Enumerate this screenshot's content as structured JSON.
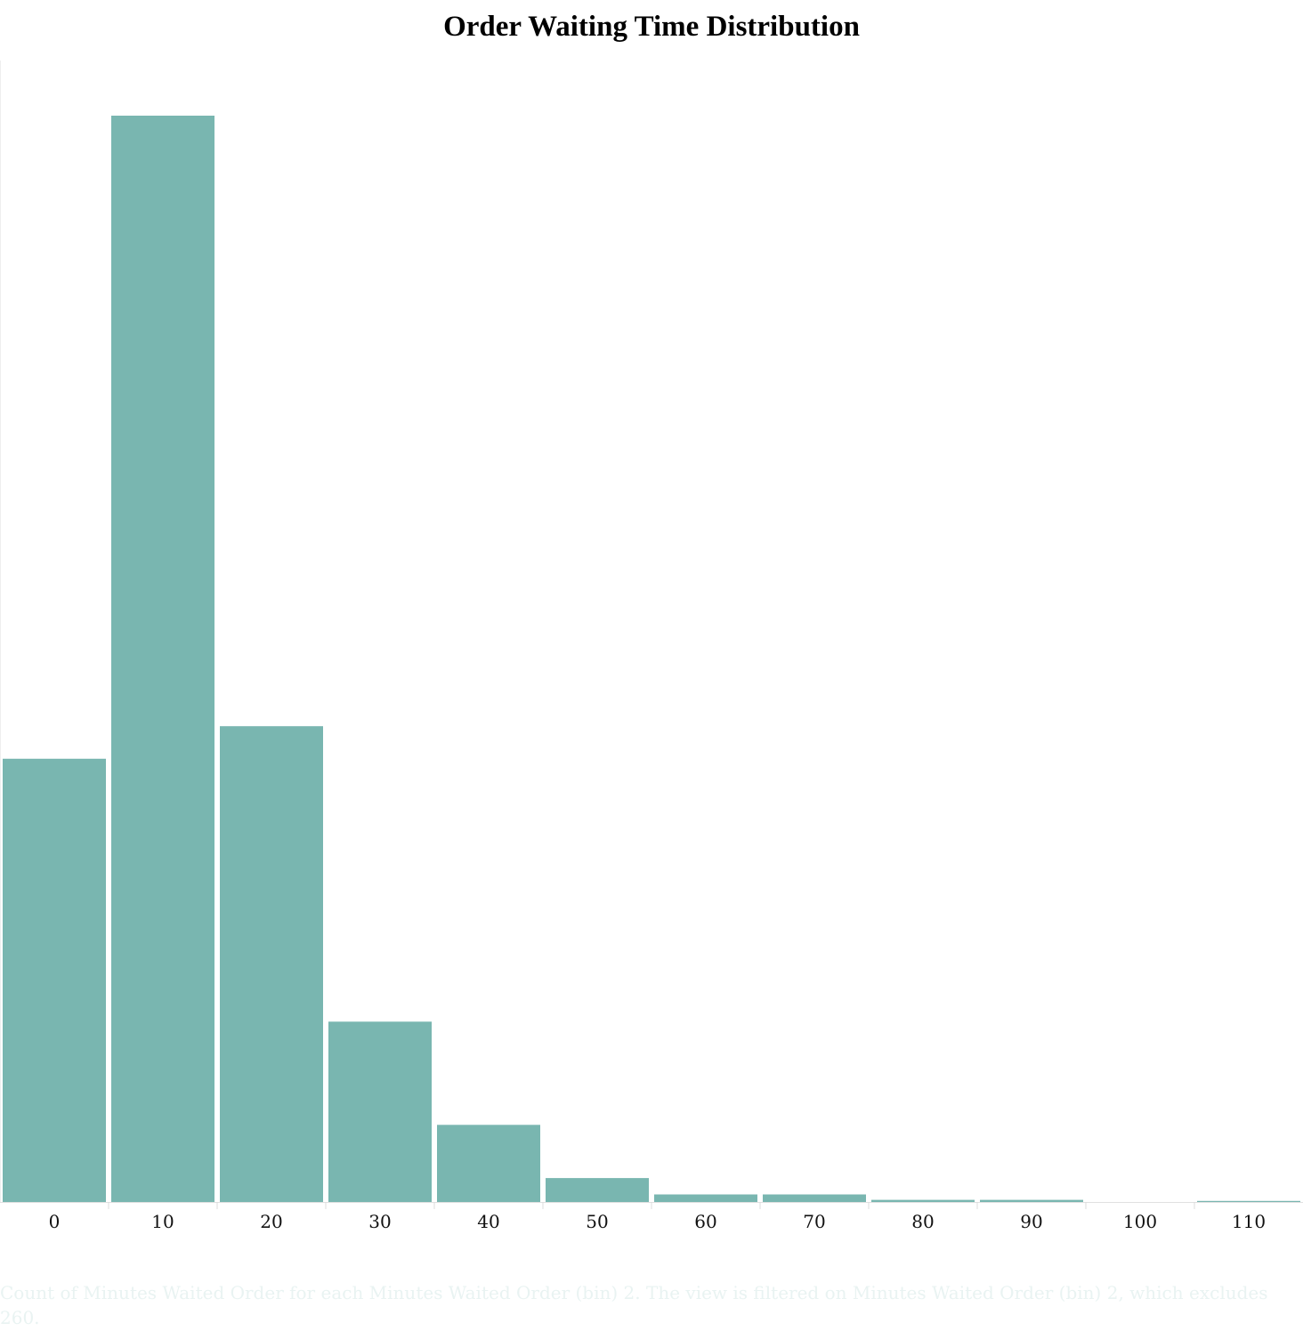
{
  "chart_data": {
    "type": "bar",
    "title": "Order Waiting Time Distribution",
    "xlabel": "",
    "ylabel": "",
    "categories": [
      "0",
      "10",
      "20",
      "30",
      "40",
      "50",
      "60",
      "70",
      "80",
      "90",
      "100",
      "110"
    ],
    "values": [
      408,
      1000,
      438,
      166,
      71,
      22,
      7,
      7,
      2,
      2,
      0,
      1
    ],
    "ylim": [
      0,
      1050
    ],
    "grid": false,
    "bar_color": "#79b6b0",
    "caption": "Count of Minutes Waited Order for each Minutes Waited Order (bin) 2. The view is filtered on Minutes Waited Order (bin) 2, which excludes 260."
  }
}
